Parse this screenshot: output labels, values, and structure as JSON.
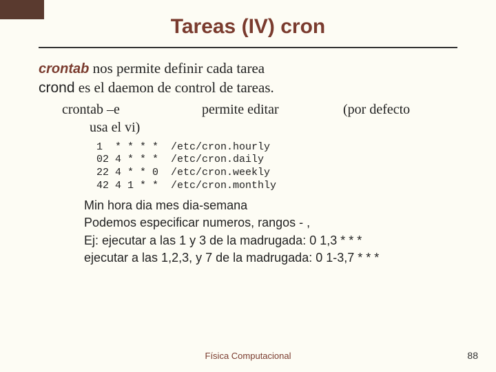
{
  "slide": {
    "title": "Tareas (IV) cron",
    "corner_color": "#5a3a2f",
    "accent_color": "#7a3b2e",
    "background": "#fdfcf4",
    "rule_color": "#333333"
  },
  "lines": {
    "l1_kw": "crontab",
    "l1_rest": " nos permite definir cada tarea",
    "l2_kw": "crond",
    "l2_rest": " es el daemon de control de tareas.",
    "edit_left": "crontab –e",
    "edit_mid": "permite editar",
    "edit_right": "(por defecto",
    "edit_sub": "usa el vi)"
  },
  "cron_block": {
    "font_family": "Courier New",
    "font_size_pt": 11,
    "rows": [
      "1  * * * *  /etc/cron.hourly",
      "02 4 * * *  /etc/cron.daily",
      "22 4 * * 0  /etc/cron.weekly",
      "42 4 1 * *  /etc/cron.monthly"
    ]
  },
  "notes": {
    "n1": "Min hora dia mes dia-semana",
    "n2": "Podemos especificar numeros, rangos - ,",
    "n3": "Ej: ejecutar a las 1 y 3 de la madrugada: 0 1,3 * * *",
    "n4": "ejecutar a las 1,2,3, y 7 de la madrugada: 0 1-3,7 * * *"
  },
  "footer": {
    "center": "Física Computacional",
    "page": "88"
  }
}
